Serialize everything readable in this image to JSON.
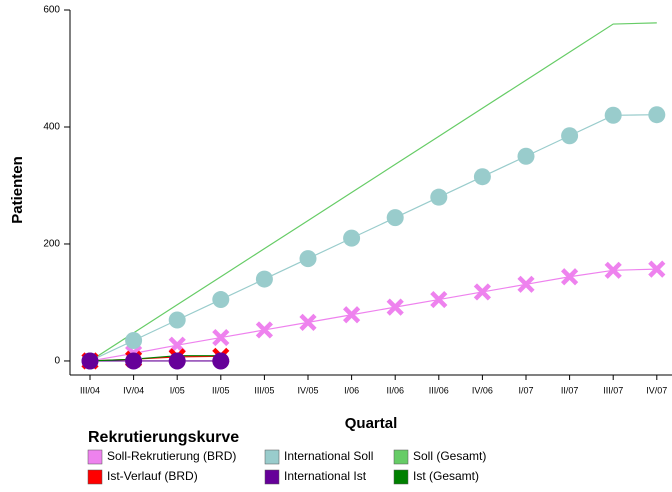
{
  "chart_data": {
    "type": "line",
    "y_label": "Patienten",
    "x_label": "Quartal",
    "legend_title": "Rekrutierungskurve",
    "categories": [
      "III/04",
      "IV/04",
      "I/05",
      "II/05",
      "III/05",
      "IV/05",
      "I/06",
      "II/06",
      "III/06",
      "IV/06",
      "I/07",
      "II/07",
      "III/07",
      "IV/07"
    ],
    "ylim": [
      -24,
      600
    ],
    "yticks": [
      0,
      200,
      400,
      600
    ],
    "series": [
      {
        "name": "Soll-Rekrutierung (BRD)",
        "color": "#ee82ee",
        "marker": "x",
        "values": [
          0,
          13,
          27,
          40,
          53,
          66,
          79,
          92,
          105,
          118,
          131,
          144,
          155,
          157
        ]
      },
      {
        "name": "International Soll",
        "color": "#99cccc",
        "marker": "circle",
        "values": [
          0,
          35,
          70,
          105,
          140,
          175,
          210,
          245,
          280,
          315,
          350,
          385,
          420,
          421
        ]
      },
      {
        "name": "Soll (Gesamt)",
        "color": "#66cc66",
        "marker": "none",
        "values": [
          0,
          48,
          96,
          144,
          192,
          240,
          288,
          336,
          384,
          432,
          480,
          528,
          576,
          578
        ]
      },
      {
        "name": "Ist-Verlauf (BRD)",
        "color": "#ff0000",
        "marker": "x",
        "values": [
          0,
          3,
          7,
          8,
          null,
          null,
          null,
          null,
          null,
          null,
          null,
          null,
          null,
          null
        ]
      },
      {
        "name": "International Ist",
        "color": "#660099",
        "marker": "circle",
        "values": [
          0,
          0,
          0,
          0,
          null,
          null,
          null,
          null,
          null,
          null,
          null,
          null,
          null,
          null
        ]
      },
      {
        "name": "Ist (Gesamt)",
        "color": "#008000",
        "marker": "none",
        "values": [
          0,
          3,
          9,
          9,
          null,
          null,
          null,
          null,
          null,
          null,
          null,
          null,
          null,
          null
        ]
      }
    ]
  }
}
